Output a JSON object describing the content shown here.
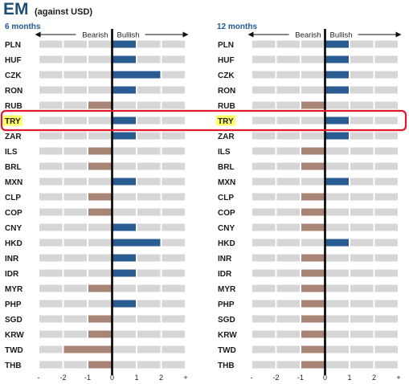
{
  "title": {
    "main": "EM",
    "sub": "(against USD)"
  },
  "colors": {
    "bullish": "#2b5c91",
    "bearish": "#a88474",
    "cell": "#d6d6d6",
    "highlight_box": "#e2182b",
    "highlight_label_bg": "#ffff66"
  },
  "highlight": {
    "currency": "TRY"
  },
  "chart_data": [
    {
      "type": "bar",
      "title": "6 months",
      "direction_labels": {
        "negative": "Bearish",
        "positive": "Bullish"
      },
      "xlim": [
        -3,
        3
      ],
      "x_ticks": [
        "-",
        "-2",
        "-1",
        "0",
        "1",
        "2",
        "+"
      ],
      "categories": [
        "PLN",
        "HUF",
        "CZK",
        "RON",
        "RUB",
        "TRY",
        "ZAR",
        "ILS",
        "BRL",
        "MXN",
        "CLP",
        "COP",
        "CNY",
        "HKD",
        "INR",
        "IDR",
        "MYR",
        "PHP",
        "SGD",
        "KRW",
        "TWD",
        "THB"
      ],
      "values": [
        1,
        1,
        2,
        1,
        -1,
        1,
        1,
        -1,
        -1,
        1,
        -1,
        -1,
        1,
        2,
        1,
        1,
        -1,
        1,
        -1,
        -1,
        -2,
        -1
      ]
    },
    {
      "type": "bar",
      "title": "12 months",
      "direction_labels": {
        "negative": "Bearish",
        "positive": "Bullish"
      },
      "xlim": [
        -3,
        3
      ],
      "x_ticks": [
        "-",
        "-2",
        "-1",
        "0",
        "1",
        "2",
        "+"
      ],
      "categories": [
        "PLN",
        "HUF",
        "CZK",
        "RON",
        "RUB",
        "TRY",
        "ZAR",
        "ILS",
        "BRL",
        "MXN",
        "CLP",
        "COP",
        "CNY",
        "HKD",
        "INR",
        "IDR",
        "MYR",
        "PHP",
        "SGD",
        "KRW",
        "TWD",
        "THB"
      ],
      "values": [
        1,
        1,
        1,
        1,
        -1,
        1,
        1,
        -1,
        -1,
        1,
        -1,
        -1,
        -1,
        1,
        -1,
        -1,
        -1,
        -1,
        -1,
        -1,
        -1,
        -1
      ]
    }
  ]
}
